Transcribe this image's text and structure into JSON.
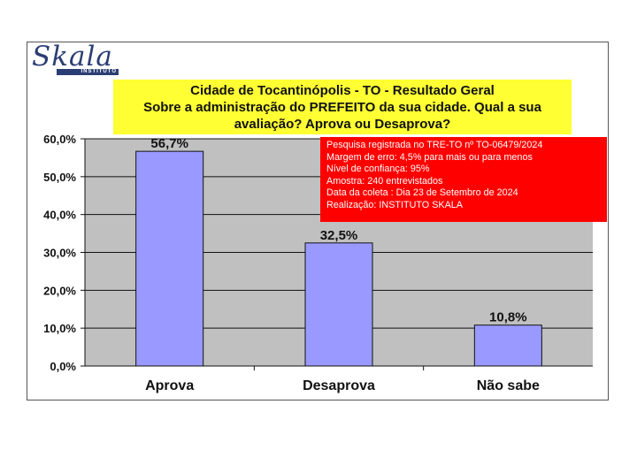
{
  "logo": {
    "word": "Skala",
    "sub": "INSTITUTO"
  },
  "title_lines": [
    "Cidade de Tocantinópolis - TO - Resultado Geral",
    "Sobre a administração do PREFEITO da sua cidade. Qual a sua",
    "avaliação? Aprova ou Desaprova?"
  ],
  "info_lines": [
    "Pesquisa registrada no TRE-TO nº TO-06479/2024",
    "Margem de erro: 4,5% para mais ou para menos",
    "Nível de confiança: 95%",
    "Amostra: 240 entrevistados",
    "Data da coleta : Dia 23 de Setembro de 2024",
    "Realização: INSTITUTO SKALA"
  ],
  "colors": {
    "bar": "#9999ff",
    "plot_bg": "#c0c0c0",
    "title_bg": "#ffff33",
    "info_bg": "#ff0000"
  },
  "chart_data": {
    "type": "bar",
    "categories": [
      "Aprova",
      "Desaprova",
      "Não sabe"
    ],
    "values": [
      56.7,
      32.5,
      10.8
    ],
    "value_labels": [
      "56,7%",
      "32,5%",
      "10,8%"
    ],
    "ylim": [
      0,
      60
    ],
    "yticks": [
      0,
      10,
      20,
      30,
      40,
      50,
      60
    ],
    "ytick_labels": [
      "0,0%",
      "10,0%",
      "20,0%",
      "30,0%",
      "40,0%",
      "50,0%",
      "60,0%"
    ],
    "grid": true,
    "legend": "none"
  }
}
